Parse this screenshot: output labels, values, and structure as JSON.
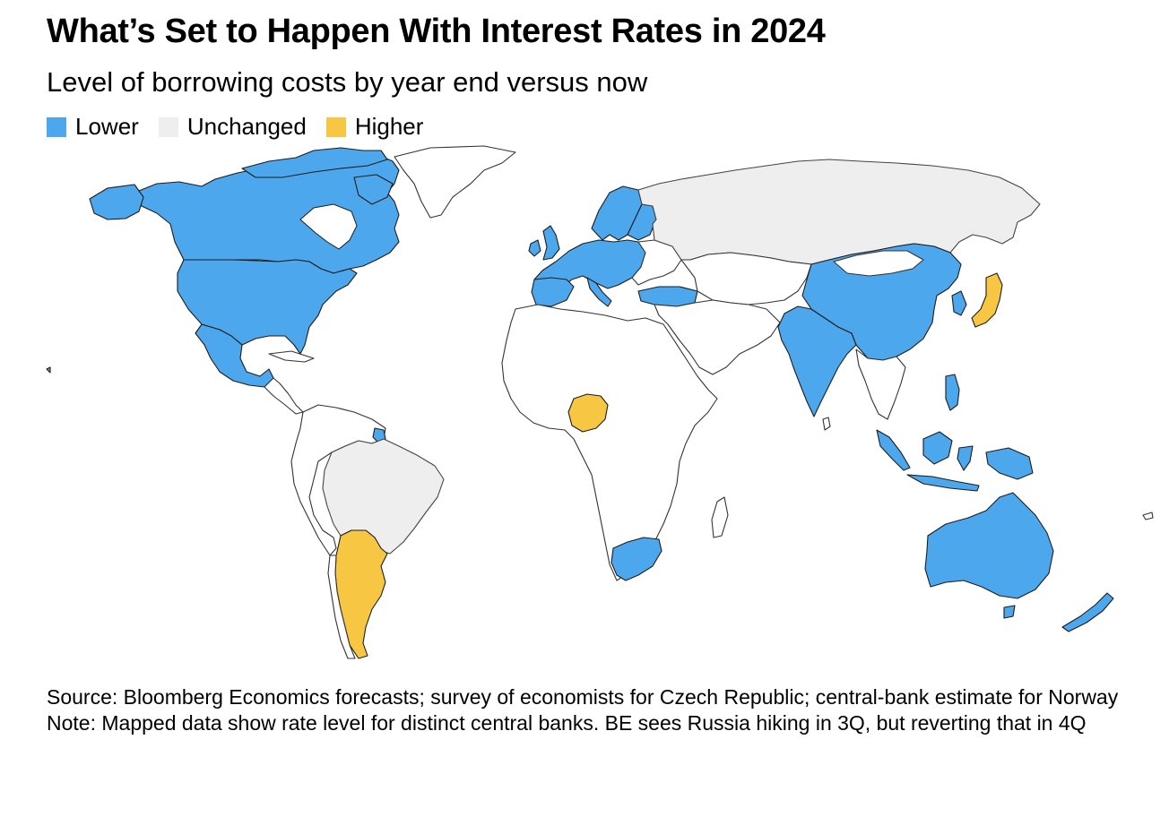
{
  "title": "What’s Set to Happen With Interest Rates in 2024",
  "subtitle": "Level of borrowing costs by year end versus now",
  "legend": [
    {
      "label": "Lower",
      "color": "#4da7ec"
    },
    {
      "label": "Unchanged",
      "color": "#eeeeee"
    },
    {
      "label": "Higher",
      "color": "#f7c744"
    }
  ],
  "map": {
    "no_data_color": "#ffffff",
    "regions": {
      "lower": [
        "United States",
        "Canada",
        "Mexico",
        "Euro area",
        "United Kingdom",
        "Sweden",
        "Norway",
        "Poland",
        "Czech Republic",
        "Hungary",
        "Romania",
        "Turkey",
        "Israel",
        "China",
        "India",
        "South Korea",
        "Philippines",
        "Indonesia",
        "Australia",
        "New Zealand",
        "South Africa",
        "Guyana"
      ],
      "unchanged": [
        "Russia",
        "Brazil"
      ],
      "higher": [
        "Japan",
        "Nigeria",
        "Argentina"
      ]
    }
  },
  "source": "Source: Bloomberg Economics forecasts; survey of economists for Czech Republic; central-bank estimate for Norway",
  "note": "Note: Mapped data show rate level for distinct central banks. BE sees Russia hiking in 3Q, but reverting that in 4Q"
}
